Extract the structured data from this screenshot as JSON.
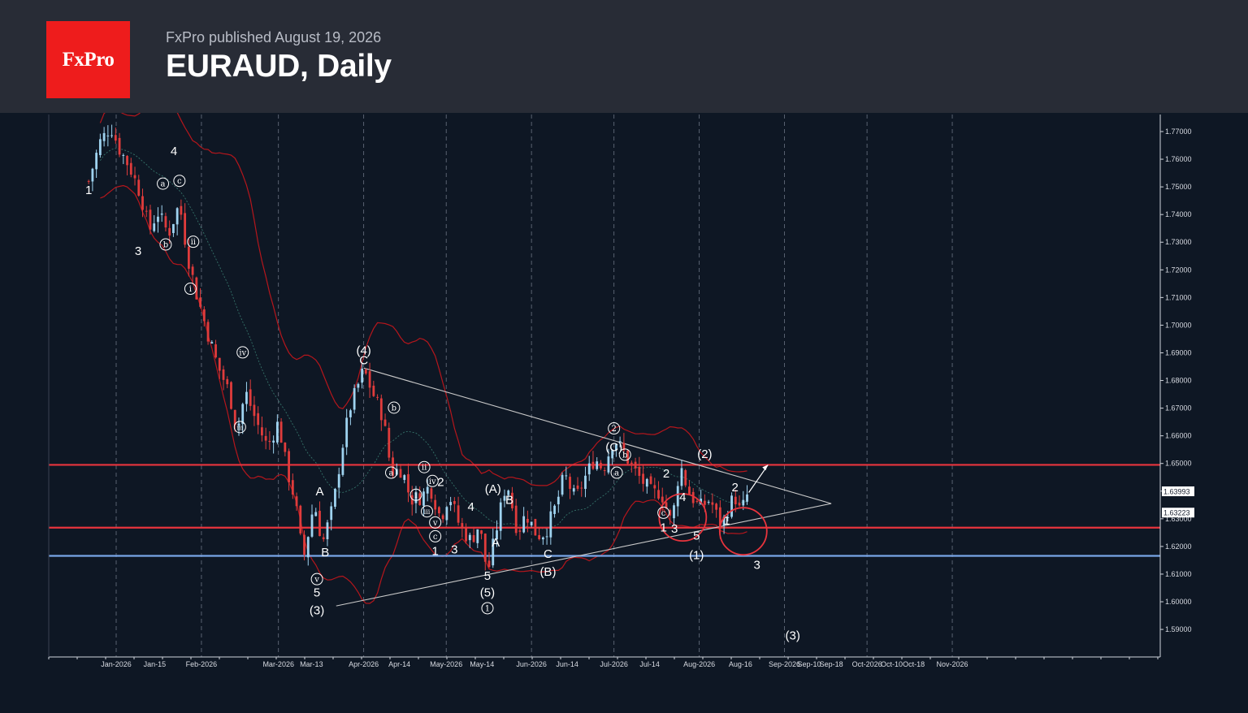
{
  "header": {
    "logo_text": "FxPro",
    "published": "FxPro published August 19, 2026",
    "title": "EURAUD, Daily"
  },
  "colors": {
    "background": "#0e1724",
    "header_bg": "#282c36",
    "brand_red": "#ee1c1c",
    "bull_candle": "#9fd3f0",
    "bear_candle": "#e03c3c",
    "bollinger_band": "#b5161c",
    "level_red": "#e8343d",
    "level_blue": "#79a5e6",
    "triangle_line": "#c9c9c9"
  },
  "chart_data": {
    "type": "candlestick",
    "instrument": "EURAUD",
    "timeframe": "Daily",
    "ylim": [
      1.583,
      1.778
    ],
    "y_ticks": [
      "1.77000",
      "1.76000",
      "1.75000",
      "1.74000",
      "1.73000",
      "1.72000",
      "1.71000",
      "1.70000",
      "1.69000",
      "1.68000",
      "1.67000",
      "1.66000",
      "1.65000",
      "1.64000",
      "1.63000",
      "1.62000",
      "1.61000",
      "1.60000",
      "1.59000"
    ],
    "x_ticks": [
      "Jan-2026",
      "Jan-15",
      "Feb-2026",
      "Mar-2026",
      "Mar-13",
      "Apr-2026",
      "Apr-14",
      "May-2026",
      "May-14",
      "Jun-2026",
      "Jun-14",
      "Jul-2026",
      "Jul-14",
      "Aug-2026",
      "Aug-16",
      "Sep-2026",
      "Sep-10",
      "Sep-18",
      "Oct-2026",
      "Oct-10",
      "Oct-18",
      "Nov-2026"
    ],
    "price_labels": [
      "1.63993",
      "1.63223"
    ],
    "close_path": [
      [
        "Dec-22",
        1.752
      ],
      [
        "Dec-26",
        1.766
      ],
      [
        "Dec-30",
        1.772
      ],
      [
        "Jan-02",
        1.764
      ],
      [
        "Jan-06",
        1.757
      ],
      [
        "Jan-10",
        1.747
      ],
      [
        "Jan-13",
        1.734
      ],
      [
        "Jan-16",
        1.741
      ],
      [
        "Jan-20",
        1.733
      ],
      [
        "Jan-24",
        1.744
      ],
      [
        "Jan-27",
        1.725
      ],
      [
        "Jan-30",
        1.712
      ],
      [
        "Feb-03",
        1.698
      ],
      [
        "Feb-07",
        1.685
      ],
      [
        "Feb-11",
        1.676
      ],
      [
        "Feb-14",
        1.662
      ],
      [
        "Feb-17",
        1.676
      ],
      [
        "Feb-21",
        1.665
      ],
      [
        "Feb-25",
        1.656
      ],
      [
        "Mar-01",
        1.665
      ],
      [
        "Mar-04",
        1.648
      ],
      [
        "Mar-07",
        1.637
      ],
      [
        "Mar-10",
        1.615
      ],
      [
        "Mar-14",
        1.636
      ],
      [
        "Mar-17",
        1.621
      ],
      [
        "Mar-21",
        1.635
      ],
      [
        "Mar-24",
        1.655
      ],
      [
        "Mar-27",
        1.67
      ],
      [
        "Apr-01",
        1.684
      ],
      [
        "Apr-04",
        1.676
      ],
      [
        "Apr-08",
        1.667
      ],
      [
        "Apr-11",
        1.647
      ],
      [
        "Apr-15",
        1.648
      ],
      [
        "Apr-18",
        1.637
      ],
      [
        "Apr-22",
        1.638
      ],
      [
        "Apr-25",
        1.642
      ],
      [
        "Apr-29",
        1.63
      ],
      [
        "May-02",
        1.639
      ],
      [
        "May-06",
        1.627
      ],
      [
        "May-10",
        1.622
      ],
      [
        "May-13",
        1.628
      ],
      [
        "May-16",
        1.61
      ],
      [
        "May-20",
        1.63
      ],
      [
        "May-23",
        1.644
      ],
      [
        "May-27",
        1.625
      ],
      [
        "May-30",
        1.632
      ],
      [
        "Jun-03",
        1.624
      ],
      [
        "Jun-06",
        1.625
      ],
      [
        "Jun-10",
        1.635
      ],
      [
        "Jun-13",
        1.646
      ],
      [
        "Jun-17",
        1.637
      ],
      [
        "Jun-20",
        1.644
      ],
      [
        "Jun-24",
        1.652
      ],
      [
        "Jun-27",
        1.648
      ],
      [
        "Jul-01",
        1.659
      ],
      [
        "Jul-04",
        1.655
      ],
      [
        "Jul-08",
        1.648
      ],
      [
        "Jul-11",
        1.644
      ],
      [
        "Jul-15",
        1.639
      ],
      [
        "Jul-18",
        1.64
      ],
      [
        "Jul-22",
        1.628
      ],
      [
        "Jul-25",
        1.65
      ],
      [
        "Jul-28",
        1.64
      ],
      [
        "Aug-01",
        1.634
      ],
      [
        "Aug-05",
        1.637
      ],
      [
        "Aug-09",
        1.627
      ],
      [
        "Aug-12",
        1.635
      ],
      [
        "Aug-14",
        1.638
      ],
      [
        "Aug-16",
        1.632
      ],
      [
        "Aug-19",
        1.64
      ]
    ],
    "levels": [
      {
        "price": 1.6495,
        "color": "#e8343d"
      },
      {
        "price": 1.6268,
        "color": "#e8343d"
      },
      {
        "price": 1.6166,
        "color": "#79a5e6"
      }
    ],
    "triangle": [
      [
        [
          "Apr-01",
          1.6845
        ],
        [
          "Sep-18",
          1.6355
        ]
      ],
      [
        [
          "Mar-22",
          1.5985
        ],
        [
          "Sep-18",
          1.6355
        ]
      ]
    ],
    "projection_arrow": [
      [
        "Aug-19",
        1.6395
      ],
      [
        "Aug-26",
        1.6495
      ]
    ],
    "highlight_circles": [
      [
        "Jul-26",
        1.6305
      ],
      [
        "Aug-17",
        1.6255
      ]
    ],
    "wave_labels": [
      {
        "t": "1",
        "d": "Dec-22",
        "p": 1.748
      },
      {
        "t": "3",
        "d": "Jan-09",
        "p": 1.726
      },
      {
        "t": "4",
        "d": "Jan-22",
        "p": 1.762
      },
      {
        "t": "a",
        "d": "Jan-18",
        "p": 1.75,
        "c": 1
      },
      {
        "t": "c",
        "d": "Jan-24",
        "p": 1.751,
        "c": 1
      },
      {
        "t": "b",
        "d": "Jan-19",
        "p": 1.728,
        "c": 1
      },
      {
        "t": "ii",
        "d": "Jan-29",
        "p": 1.729,
        "c": 1
      },
      {
        "t": "i",
        "d": "Jan-28",
        "p": 1.712,
        "c": 1
      },
      {
        "t": "iv",
        "d": "Feb-16",
        "p": 1.689,
        "c": 1
      },
      {
        "t": "iii",
        "d": "Feb-15",
        "p": 1.662,
        "c": 1
      },
      {
        "t": "A",
        "d": "Mar-16",
        "p": 1.639
      },
      {
        "t": "B",
        "d": "Mar-18",
        "p": 1.617
      },
      {
        "t": "v",
        "d": "Mar-15",
        "p": 1.607,
        "c": 1
      },
      {
        "t": "5",
        "d": "Mar-15",
        "p": 1.6025
      },
      {
        "t": "(3)",
        "d": "Mar-15",
        "p": 1.596
      },
      {
        "t": "(4)",
        "d": "Apr-01",
        "p": 1.69
      },
      {
        "t": "C",
        "d": "Apr-01",
        "p": 1.6865
      },
      {
        "t": "b",
        "d": "Apr-12",
        "p": 1.669,
        "c": 1
      },
      {
        "t": "a",
        "d": "Apr-11",
        "p": 1.6455,
        "c": 1
      },
      {
        "t": "ii",
        "d": "Apr-23",
        "p": 1.6475,
        "c": 1
      },
      {
        "t": "iv",
        "d": "Apr-26",
        "p": 1.6425,
        "c": 1
      },
      {
        "t": "2",
        "d": "Apr-29",
        "p": 1.6425
      },
      {
        "t": "i",
        "d": "Apr-20",
        "p": 1.6375,
        "c": 1
      },
      {
        "t": "iii",
        "d": "Apr-24",
        "p": 1.6315,
        "c": 1
      },
      {
        "t": "v",
        "d": "Apr-27",
        "p": 1.6275,
        "c": 1
      },
      {
        "t": "c",
        "d": "Apr-27",
        "p": 1.6225,
        "c": 1
      },
      {
        "t": "1",
        "d": "Apr-27",
        "p": 1.6175
      },
      {
        "t": "3",
        "d": "May-04",
        "p": 1.618
      },
      {
        "t": "4",
        "d": "May-10",
        "p": 1.6335
      },
      {
        "t": "(A)",
        "d": "May-18",
        "p": 1.64
      },
      {
        "t": "B",
        "d": "May-24",
        "p": 1.636
      },
      {
        "t": "A",
        "d": "May-19",
        "p": 1.6205
      },
      {
        "t": "5",
        "d": "May-16",
        "p": 1.6085
      },
      {
        "t": "(5)",
        "d": "May-16",
        "p": 1.6025
      },
      {
        "t": "1",
        "d": "May-16",
        "p": 1.5965,
        "c": 1
      },
      {
        "t": "C",
        "d": "Jun-07",
        "p": 1.6165
      },
      {
        "t": "(B)",
        "d": "Jun-07",
        "p": 1.61
      },
      {
        "t": "2",
        "d": "Jul-01",
        "p": 1.6615,
        "c": 1
      },
      {
        "t": "(C)",
        "d": "Jul-01",
        "p": 1.655
      },
      {
        "t": "b",
        "d": "Jul-05",
        "p": 1.652,
        "c": 1
      },
      {
        "t": "a",
        "d": "Jul-02",
        "p": 1.6455,
        "c": 1
      },
      {
        "t": "2",
        "d": "Jul-20",
        "p": 1.6455
      },
      {
        "t": "4",
        "d": "Jul-26",
        "p": 1.637
      },
      {
        "t": "c",
        "d": "Jul-19",
        "p": 1.631,
        "c": 1
      },
      {
        "t": "1",
        "d": "Jul-19",
        "p": 1.626
      },
      {
        "t": "3",
        "d": "Jul-23",
        "p": 1.6255
      },
      {
        "t": "5",
        "d": "Jul-31",
        "p": 1.623
      },
      {
        "t": "(1)",
        "d": "Jul-31",
        "p": 1.616
      },
      {
        "t": "(2)",
        "d": "Aug-03",
        "p": 1.6525
      },
      {
        "t": "2",
        "d": "Aug-14",
        "p": 1.6405
      },
      {
        "t": "1",
        "d": "Aug-11",
        "p": 1.6285
      },
      {
        "t": "3",
        "d": "Aug-22",
        "p": 1.6125
      },
      {
        "t": "(3)",
        "d": "Sep-04",
        "p": 1.587
      }
    ]
  }
}
